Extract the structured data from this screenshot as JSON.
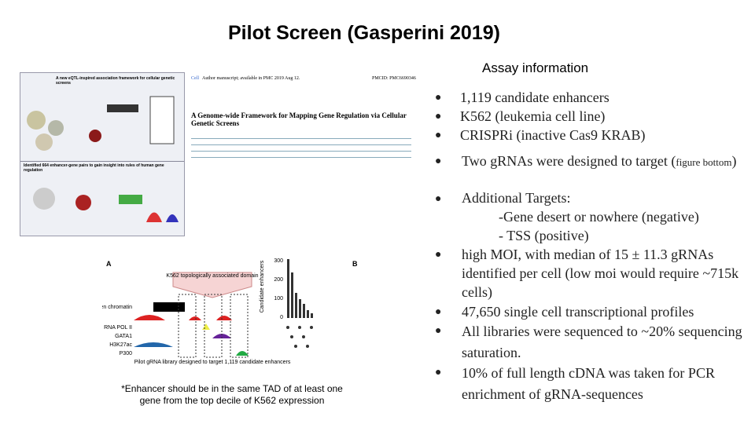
{
  "header": {
    "title": "Pilot Screen (Gasperini 2019)"
  },
  "paper": {
    "journal": "Cell",
    "note": "Author manuscript; available in PMC 2019 Aug 12.",
    "pmcid": "PMCID: PMC6690346",
    "title": "A Genome-wide Framework for Mapping Gene Regulation via Cellular Genetic Screens"
  },
  "abstract_figure": {
    "top": "A new eQTL-inspired association framework for cellular genetic screens",
    "bottom": "Identified 664 enhancer-gene pairs to gain insight into rules of human gene regulation"
  },
  "figure": {
    "panel_a": "A",
    "panel_b": "B",
    "tad": "K562 topologically associated domain",
    "tracks": [
      "Open chromatin",
      "RNA POL II",
      "GATA1",
      "H3K27ac",
      "P300"
    ],
    "caption": "Pilot gRNA library designed to target 1,119 candidate enhancers",
    "y_label": "Candidate enhancers",
    "yticks": [
      "300",
      "200",
      "100",
      "0"
    ]
  },
  "footnote": "*Enhancer should be in the same TAD of at least one gene from the top decile of K562 expression",
  "assay": {
    "heading": "Assay information",
    "bullets": [
      "1,119 candidate enhancers",
      "K562 (leukemia cell line)",
      "CRISPRi (inactive Cas9 KRAB)"
    ],
    "gRNA": {
      "text": "Two gRNAs were designed to target (",
      "small": "figure bottom",
      "close": ")"
    },
    "targets": {
      "text": "Additional Targets:",
      "items": [
        "-Gene desert or nowhere (negative)",
        "- TSS (positive)"
      ]
    },
    "more": [
      "high MOI, with median of 15 ± 11.3 gRNAs identified per cell (low moi would require ~715k cells)",
      "47,650 single cell transcriptional profiles",
      "All libraries were sequenced to ~20% sequencing saturation.",
      " 10% of full length cDNA was taken for PCR enrichment of gRNA-sequences"
    ]
  }
}
